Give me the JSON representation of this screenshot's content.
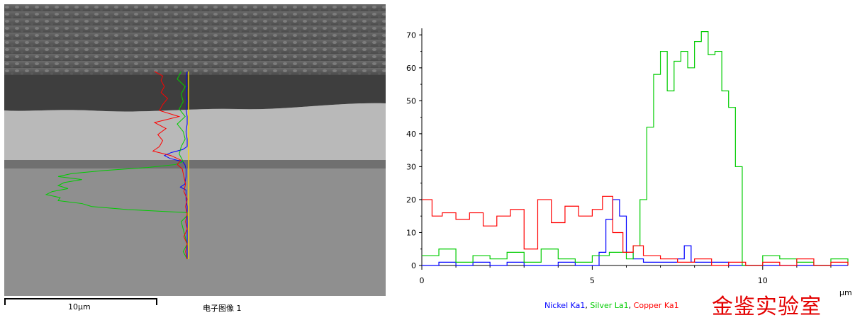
{
  "sem_image": {
    "scale_label": "10µm",
    "caption": "电子图像 1"
  },
  "chart_data": {
    "type": "line",
    "title": "",
    "xlabel": "µm",
    "ylabel": "",
    "xlim": [
      0,
      12.5
    ],
    "ylim": [
      0,
      72
    ],
    "x_ticks": [
      0,
      5,
      10
    ],
    "y_ticks": [
      0,
      10,
      20,
      30,
      40,
      50,
      60,
      70
    ],
    "grid": false,
    "legend_position": "bottom",
    "series": [
      {
        "name": "Nickel Ka1",
        "color": "#0000ff",
        "x": [
          0,
          0.5,
          1,
          1.5,
          2,
          2.5,
          3,
          3.5,
          4,
          4.5,
          5,
          5.2,
          5.4,
          5.6,
          5.8,
          6.0,
          6.2,
          6.5,
          7,
          7.5,
          7.7,
          7.9,
          8.5,
          9,
          10,
          11,
          12,
          12.5
        ],
        "values": [
          0,
          1,
          0,
          1,
          0,
          1,
          0,
          0,
          1,
          0,
          0,
          4,
          14,
          20,
          15,
          4,
          2,
          1,
          1,
          2,
          6,
          1,
          1,
          0,
          0,
          0,
          0,
          0
        ]
      },
      {
        "name": "Silver La1",
        "color": "#00cc00",
        "x": [
          0,
          0.5,
          1,
          1.5,
          2,
          2.5,
          3,
          3.5,
          4,
          4.5,
          5,
          5.5,
          6,
          6.2,
          6.4,
          6.6,
          6.8,
          7.0,
          7.2,
          7.4,
          7.6,
          7.8,
          8.0,
          8.2,
          8.4,
          8.6,
          8.8,
          9.0,
          9.2,
          9.4,
          9.6,
          10,
          10.5,
          11,
          11.5,
          12,
          12.5
        ],
        "values": [
          3,
          5,
          1,
          3,
          2,
          4,
          1,
          5,
          2,
          1,
          3,
          4,
          2,
          6,
          20,
          42,
          58,
          65,
          53,
          62,
          65,
          60,
          68,
          71,
          64,
          65,
          53,
          48,
          30,
          0,
          0,
          3,
          2,
          1,
          0,
          2,
          0
        ]
      },
      {
        "name": "Copper Ka1",
        "color": "#ff0000",
        "x": [
          0,
          0.3,
          0.6,
          1,
          1.4,
          1.8,
          2.2,
          2.6,
          3.0,
          3.4,
          3.8,
          4.2,
          4.6,
          5.0,
          5.3,
          5.6,
          5.9,
          6.2,
          6.5,
          7.0,
          7.5,
          8.0,
          8.5,
          9,
          9.5,
          10,
          10.5,
          11,
          11.5,
          12,
          12.5
        ],
        "values": [
          20,
          15,
          16,
          14,
          16,
          12,
          15,
          17,
          5,
          20,
          13,
          18,
          15,
          17,
          21,
          10,
          4,
          6,
          3,
          2,
          1,
          2,
          0,
          1,
          0,
          1,
          0,
          2,
          0,
          1,
          0
        ]
      }
    ],
    "watermark": "金鉴实验室"
  }
}
